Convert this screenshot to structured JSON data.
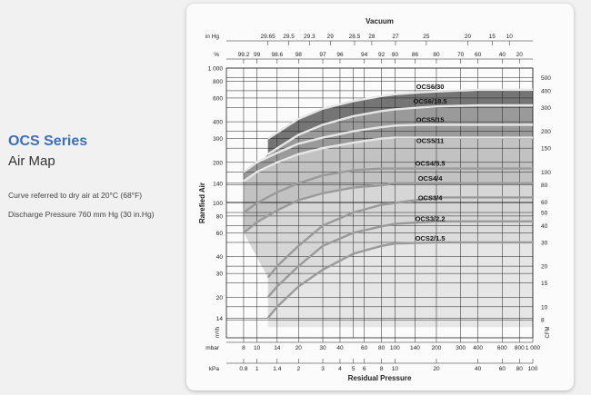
{
  "heading": {
    "series": "OCS Series",
    "subtitle": "Air Map",
    "note1": "Curve referred to dry air at 20°C (68°F)",
    "note2": "Discharge Pressure 760 mm Hg (30 in.Hg)"
  },
  "chart_data": {
    "type": "area",
    "top_title": "Vacuum",
    "bottom_title": "Residual Pressure",
    "left_title": "Rarefied Air",
    "left_unit": "m³/h",
    "right_unit": "CFM",
    "top_scales": [
      {
        "label": "in Hg",
        "ticks": [
          "29.65",
          "29.5",
          "29.3",
          "29",
          "28.5",
          "28",
          "27",
          "25",
          "20",
          "15",
          "10"
        ],
        "positions_mbar": [
          12,
          17,
          24,
          34,
          51,
          68,
          101,
          169,
          338,
          507,
          676
        ]
      },
      {
        "label": "%",
        "ticks": [
          "99.2",
          "99",
          "98.6",
          "98",
          "97",
          "96",
          "94",
          "92",
          "90",
          "86",
          "80",
          "70",
          "60",
          "40",
          "20"
        ],
        "positions_mbar": [
          8,
          10,
          14,
          20,
          30,
          40,
          60,
          80,
          100,
          140,
          200,
          300,
          400,
          600,
          800
        ]
      }
    ],
    "bottom_scales": [
      {
        "label": "mbar",
        "ticks": [
          "8",
          "10",
          "14",
          "20",
          "30",
          "40",
          "60",
          "80",
          "100",
          "140",
          "200",
          "300",
          "400",
          "600",
          "800",
          "1 000"
        ],
        "positions_mbar": [
          8,
          10,
          14,
          20,
          30,
          40,
          60,
          80,
          100,
          140,
          200,
          300,
          400,
          600,
          800,
          1000
        ]
      },
      {
        "label": "kPa",
        "ticks": [
          "0.8",
          "1",
          "1.4",
          "2",
          "3",
          "4",
          "5",
          "6",
          "8",
          "10",
          "20",
          "40",
          "60",
          "80",
          "100"
        ],
        "positions_mbar": [
          8,
          10,
          14,
          20,
          30,
          40,
          50,
          60,
          80,
          100,
          200,
          400,
          600,
          800,
          1000
        ]
      }
    ],
    "x_scale": "log",
    "xlim_mbar": [
      6,
      1000
    ],
    "y_scale": "log",
    "ylim_m3h": [
      10,
      1000
    ],
    "y_ticks_m3h": [
      "1 000",
      "800",
      "600",
      "400",
      "300",
      "200",
      "140",
      "100",
      "80",
      "60",
      "40",
      "30",
      "20",
      "14"
    ],
    "y_ticks_cfm": [
      "500",
      "400",
      "300",
      "200",
      "150",
      "100",
      "80",
      "60",
      "50",
      "40",
      "30",
      "20",
      "15",
      "10",
      "8"
    ],
    "grid": true,
    "series": [
      {
        "name": "OCS6/30",
        "x_mbar": [
          12,
          20,
          30,
          50,
          80,
          100,
          150,
          200,
          400,
          1000
        ],
        "y_m3h": [
          300,
          420,
          500,
          570,
          620,
          640,
          660,
          670,
          690,
          690
        ]
      },
      {
        "name": "OCS6/18.5",
        "x_mbar": [
          12,
          20,
          30,
          50,
          80,
          100,
          150,
          200,
          400,
          1000
        ],
        "y_m3h": [
          230,
          320,
          380,
          440,
          480,
          495,
          510,
          520,
          530,
          530
        ]
      },
      {
        "name": "OCS5/15",
        "x_mbar": [
          8,
          10,
          14,
          20,
          30,
          50,
          80,
          100,
          150,
          200,
          400,
          1000
        ],
        "y_m3h": [
          170,
          200,
          235,
          275,
          305,
          340,
          365,
          375,
          380,
          380,
          380,
          380
        ]
      },
      {
        "name": "OCS5/11",
        "x_mbar": [
          8,
          10,
          14,
          20,
          30,
          50,
          80,
          100,
          150,
          200,
          400,
          1000
        ],
        "y_m3h": [
          145,
          170,
          200,
          230,
          255,
          280,
          300,
          305,
          305,
          305,
          305,
          305
        ]
      },
      {
        "name": "OCS4/5.5",
        "x_mbar": [
          8,
          10,
          14,
          20,
          30,
          50,
          80,
          100,
          200,
          1000
        ],
        "y_m3h": [
          85,
          100,
          120,
          140,
          160,
          175,
          180,
          180,
          180,
          180
        ]
      },
      {
        "name": "OCS4/4",
        "x_mbar": [
          8,
          10,
          14,
          20,
          30,
          50,
          80,
          100,
          200,
          1000
        ],
        "y_m3h": [
          60,
          72,
          88,
          105,
          118,
          130,
          135,
          140,
          140,
          140
        ]
      },
      {
        "name": "OCS3/4",
        "x_mbar": [
          12,
          14,
          20,
          30,
          50,
          80,
          100,
          200,
          1000
        ],
        "y_m3h": [
          28,
          34,
          48,
          68,
          85,
          97,
          100,
          110,
          110
        ]
      },
      {
        "name": "OCS3/2.2",
        "x_mbar": [
          12,
          14,
          20,
          30,
          50,
          80,
          100,
          200,
          1000
        ],
        "y_m3h": [
          20,
          24,
          34,
          48,
          60,
          67,
          70,
          73,
          73
        ]
      },
      {
        "name": "OCS2/1.5",
        "x_mbar": [
          12,
          14,
          20,
          30,
          50,
          80,
          100,
          200,
          1000
        ],
        "y_m3h": [
          14,
          17,
          24,
          32,
          42,
          48,
          50,
          51,
          51
        ]
      }
    ],
    "colors": {
      "fill_dark": "#757575",
      "fill_mid": "#9a9a9a",
      "fill_light": "#c2c2c2",
      "fill_lighter": "#d6d6d6",
      "curve_light": "#e8e8e8",
      "grid": "#222222"
    }
  }
}
